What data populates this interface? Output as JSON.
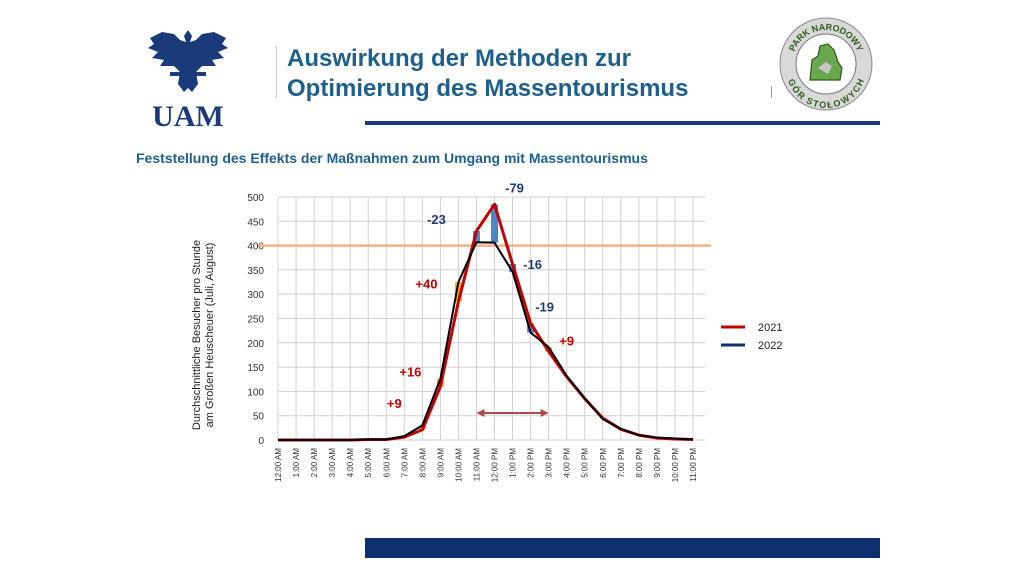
{
  "header": {
    "title_line1": "Auswirkung der Methoden zur",
    "title_line2": "Optimierung des Massentourismus",
    "logo_left_text": "UAM",
    "logo_right_text_top": "PARK NARODOWY",
    "logo_right_text_bottom": "GÓR STOŁOWYCH"
  },
  "subtitle": "Feststellung des Effekts der Maßnahmen zum Umgang mit Massentourismus",
  "colors": {
    "title": "#1f5f8b",
    "bar": "#0e2f6e",
    "series_2021": "#c00000",
    "series_2022": "#000000",
    "threshold": "#f4b183",
    "increase": "#f5b800",
    "decrease": "#4a86c8"
  },
  "chart_data": {
    "type": "line",
    "ylabel_line1": "Durchschnittliche Besucher pro Stunde",
    "ylabel_line2": "am Großen Heuscheuer (Juli, August)",
    "ylim": [
      0,
      500
    ],
    "yticks": [
      "0",
      "50",
      "100",
      "150",
      "200",
      "250",
      "300",
      "350",
      "400",
      "450",
      "500"
    ],
    "categories": [
      "12:00 AM",
      "1:00 AM",
      "2:00 AM",
      "3:00 AM",
      "4:00 AM",
      "5:00 AM",
      "6:00 AM",
      "7:00 AM",
      "8:00 AM",
      "9:00 AM",
      "10:00 AM",
      "11:00 AM",
      "12:00 PM",
      "1:00 PM",
      "2:00 PM",
      "3:00 PM",
      "4:00 PM",
      "5:00 PM",
      "6:00 PM",
      "7:00 PM",
      "8:00 PM",
      "9:00 PM",
      "10:00 PM",
      "11:00 PM"
    ],
    "series": [
      {
        "name": "2021",
        "values": [
          0,
          0,
          0,
          0,
          0,
          1,
          1,
          6,
          21,
          110,
          285,
          430,
          485,
          362,
          240,
          182,
          130,
          85,
          45,
          22,
          10,
          4,
          2,
          1
        ]
      },
      {
        "name": "2022",
        "values": [
          0,
          0,
          0,
          0,
          0,
          1,
          1,
          8,
          30,
          126,
          325,
          407,
          406,
          346,
          221,
          191,
          132,
          86,
          43,
          23,
          10,
          5,
          3,
          1
        ]
      }
    ],
    "threshold": 400,
    "annotations": [
      {
        "label": "+9",
        "category": "8:00 AM",
        "type": "increase"
      },
      {
        "label": "+16",
        "category": "9:00 AM",
        "type": "increase"
      },
      {
        "label": "+40",
        "category": "10:00 AM",
        "type": "increase"
      },
      {
        "label": "-23",
        "category": "11:00 AM",
        "type": "decrease"
      },
      {
        "label": "-79",
        "category": "12:00 PM",
        "type": "decrease"
      },
      {
        "label": "-16",
        "category": "1:00 PM",
        "type": "decrease"
      },
      {
        "label": "-19",
        "category": "2:00 PM",
        "type": "decrease"
      },
      {
        "label": "+9",
        "category": "3:00 PM",
        "type": "increase"
      }
    ],
    "range_arrow": {
      "from": "11:00 AM",
      "to": "3:00 PM"
    },
    "legend_position": "right",
    "grid": true
  }
}
